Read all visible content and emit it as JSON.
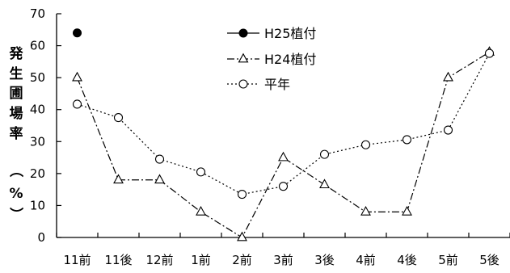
{
  "chart_data": {
    "type": "line",
    "categories": [
      "11前",
      "11後",
      "12前",
      "1前",
      "2前",
      "3前",
      "3後",
      "4前",
      "4後",
      "5前",
      "5後"
    ],
    "ylabel_chars": [
      "発",
      "生",
      "圃",
      "場",
      "率",
      "（",
      "%",
      "）"
    ],
    "ylim": [
      0,
      70
    ],
    "yticks": [
      "0",
      "10",
      "20",
      "30",
      "40",
      "50",
      "60",
      "70"
    ],
    "ytick_values": [
      0,
      10,
      20,
      30,
      40,
      50,
      60,
      70
    ],
    "grid": false,
    "legend_position": "top-center",
    "series": [
      {
        "name": "H25植付",
        "marker": "filled-circle",
        "line": "solid",
        "values": [
          64,
          null,
          null,
          null,
          null,
          null,
          null,
          null,
          null,
          null,
          null
        ]
      },
      {
        "name": "H24植付",
        "marker": "triangle",
        "line": "dash-dot",
        "values": [
          50,
          18,
          18,
          8,
          0,
          25,
          16.5,
          8,
          8,
          50,
          58
        ]
      },
      {
        "name": "平年",
        "marker": "open-circle",
        "line": "dotted",
        "values": [
          41.7,
          37.5,
          24.5,
          20.5,
          13.5,
          16,
          26,
          29,
          30.6,
          33.6,
          57.6
        ]
      }
    ]
  }
}
